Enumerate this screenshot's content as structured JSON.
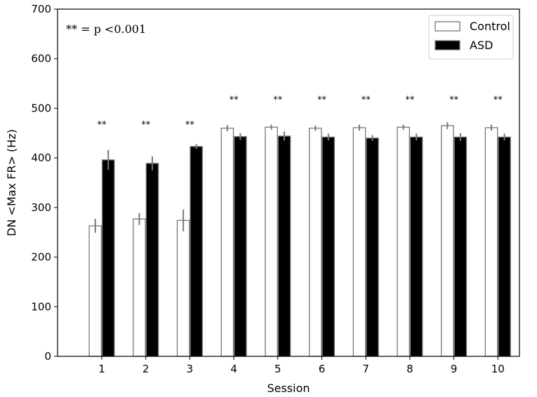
{
  "chart_data": {
    "type": "bar",
    "categories": [
      "1",
      "2",
      "3",
      "4",
      "5",
      "6",
      "7",
      "8",
      "9",
      "10"
    ],
    "series": [
      {
        "name": "Control",
        "values": [
          263,
          277,
          274,
          460,
          462,
          460,
          461,
          462,
          465,
          461
        ],
        "errors": [
          14,
          12,
          22,
          6,
          5,
          5,
          6,
          5,
          7,
          6
        ],
        "fill": "#ffffff",
        "stroke": "#777777"
      },
      {
        "name": "ASD",
        "values": [
          396,
          389,
          423,
          443,
          444,
          442,
          440,
          442,
          442,
          442
        ],
        "errors": [
          20,
          14,
          5,
          7,
          9,
          7,
          6,
          7,
          8,
          7
        ],
        "fill": "#000000",
        "stroke": "#777777"
      }
    ],
    "significance": [
      "**",
      "**",
      "**",
      "**",
      "**",
      "**",
      "**",
      "**",
      "**",
      "**"
    ],
    "annotation": "** = p <0.001",
    "xlabel": "Session",
    "ylabel": "DN <Max FR> (Hz)",
    "ylim": [
      0,
      700
    ],
    "yticks": [
      0,
      100,
      200,
      300,
      400,
      500,
      600,
      700
    ],
    "grid": false,
    "legend_position": "top-right",
    "error_bar_color": "#777777"
  }
}
